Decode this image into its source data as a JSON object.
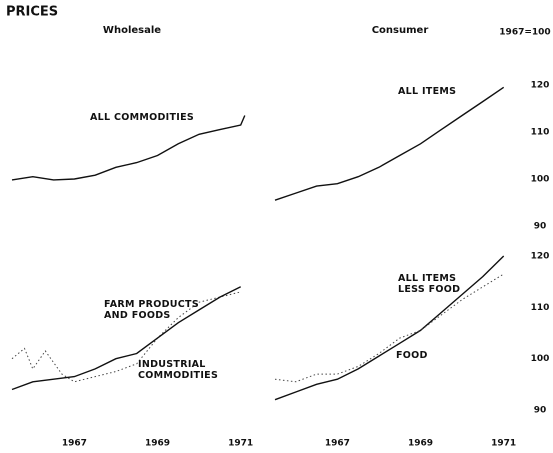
{
  "title": "PRICES",
  "unit": "1967=100",
  "chart_data": [
    {
      "type": "line",
      "title": "Wholesale",
      "xlim": [
        1965.5,
        1971.2
      ],
      "ylim": [
        90,
        120
      ],
      "series": [
        {
          "name": "ALL COMMODITIES",
          "color": "#111",
          "style": "solid",
          "x": [
            1965.5,
            1966,
            1966.5,
            1967,
            1967.5,
            1968,
            1968.5,
            1969,
            1969.5,
            1970,
            1970.5,
            1971,
            1971.1
          ],
          "values": [
            99.8,
            100.5,
            99.8,
            100,
            100.8,
            102.5,
            103.5,
            105,
            107.5,
            109.5,
            110.5,
            111.5,
            113.5
          ]
        }
      ]
    },
    {
      "type": "line",
      "title": "Consumer",
      "xlim": [
        1965.5,
        1971.2
      ],
      "ylim": [
        90,
        120
      ],
      "yticks": [
        90,
        100,
        110,
        120
      ],
      "series": [
        {
          "name": "ALL ITEMS",
          "color": "#111",
          "style": "solid",
          "x": [
            1965.5,
            1966,
            1966.5,
            1967,
            1967.5,
            1968,
            1968.5,
            1969,
            1969.5,
            1970,
            1970.5,
            1971
          ],
          "values": [
            95.5,
            97,
            98.5,
            99,
            100.5,
            102.5,
            105,
            107.5,
            110.5,
            113.5,
            116.5,
            119.5
          ]
        }
      ]
    },
    {
      "type": "line",
      "xlim": [
        1965.5,
        1971.2
      ],
      "ylim": [
        90,
        120
      ],
      "xticks": [
        1967,
        1969,
        1971
      ],
      "series": [
        {
          "name": "FARM PRODUCTS AND FOODS",
          "color": "#444",
          "style": "dotted",
          "x": [
            1965.5,
            1965.8,
            1966,
            1966.3,
            1966.7,
            1967,
            1967.5,
            1968,
            1968.5,
            1969,
            1969.5,
            1970,
            1970.5,
            1971
          ],
          "values": [
            100,
            102,
            98,
            101.5,
            97,
            95.5,
            96.5,
            97.5,
            99,
            104,
            108,
            111,
            112,
            113
          ]
        },
        {
          "name": "INDUSTRIAL COMMODITIES",
          "color": "#111",
          "style": "solid",
          "x": [
            1965.5,
            1966,
            1966.5,
            1967,
            1967.5,
            1968,
            1968.5,
            1969,
            1969.5,
            1970,
            1970.5,
            1971
          ],
          "values": [
            94,
            95.5,
            96,
            96.5,
            98,
            100,
            101,
            104,
            107,
            109.5,
            112,
            114
          ]
        }
      ]
    },
    {
      "type": "line",
      "xlim": [
        1965.5,
        1971.2
      ],
      "ylim": [
        90,
        120
      ],
      "yticks": [
        90,
        100,
        110,
        120
      ],
      "xticks": [
        1967,
        1969,
        1971
      ],
      "series": [
        {
          "name": "ALL ITEMS LESS FOOD",
          "color": "#111",
          "style": "solid",
          "x": [
            1965.5,
            1966,
            1966.5,
            1967,
            1967.5,
            1968,
            1968.5,
            1969,
            1969.5,
            1970,
            1970.5,
            1971
          ],
          "values": [
            92,
            93.5,
            95,
            96,
            98,
            100.5,
            103,
            105.5,
            109,
            112.5,
            116,
            120
          ]
        },
        {
          "name": "FOOD",
          "color": "#444",
          "style": "dotted",
          "x": [
            1965.5,
            1966,
            1966.5,
            1967,
            1967.5,
            1968,
            1968.5,
            1969,
            1969.5,
            1970,
            1970.5,
            1971
          ],
          "values": [
            96,
            95.5,
            97,
            97,
            98.5,
            101,
            104,
            105.5,
            108.5,
            111.5,
            114,
            116.5
          ]
        }
      ]
    }
  ]
}
